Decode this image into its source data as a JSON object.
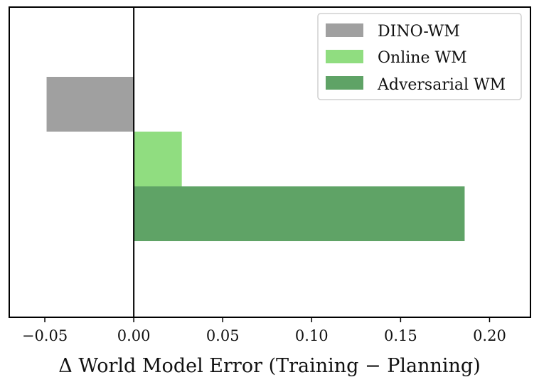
{
  "chart_data": {
    "type": "bar",
    "orientation": "horizontal",
    "title": "",
    "xlabel": "Δ World Model Error (Training − Planning)",
    "ylabel": "",
    "xlim": [
      -0.07,
      0.223
    ],
    "xticks": [
      -0.05,
      0.0,
      0.05,
      0.1,
      0.15,
      0.2
    ],
    "xtick_labels": [
      "−0.05",
      "0.00",
      "0.05",
      "0.10",
      "0.15",
      "0.20"
    ],
    "legend_position": "top-right",
    "grid": false,
    "zero_line": true,
    "series": [
      {
        "name": "DINO-WM",
        "value": -0.049,
        "color": "#a0a0a0"
      },
      {
        "name": "Online WM",
        "value": 0.027,
        "color": "#90dd80"
      },
      {
        "name": "Adversarial WM",
        "value": 0.186,
        "color": "#5fa366"
      }
    ]
  }
}
